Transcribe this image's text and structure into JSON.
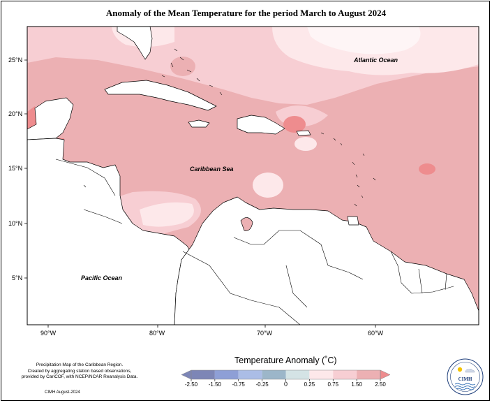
{
  "title": "Anomaly of the Mean Temperature for the period March to August 2024",
  "map": {
    "labels": {
      "atlantic": "Atlantic Ocean",
      "caribbean": "Caribbean Sea",
      "pacific": "Pacific Ocean"
    },
    "lat_ticks": [
      "25°N",
      "20°N",
      "15°N",
      "10°N",
      "5°N"
    ],
    "lon_ticks": [
      "90°W",
      "80°W",
      "70°W",
      "60°W"
    ],
    "colors": {
      "anom_0_0.25": "#fde8ea",
      "anom_0.25_0.75": "#f7ced3",
      "anom_0.75_1.50": "#ecb0b3",
      "anom_1.50_2.50": "#ee8c8e",
      "land": "#ffffff",
      "coast": "#000000"
    }
  },
  "legend": {
    "title": "Temperature Anomaly (˚C)",
    "ticks": [
      "-2.50",
      "-1.50",
      "-0.75",
      "-0.25",
      "0",
      "0.25",
      "0.75",
      "1.50",
      "2.50"
    ],
    "colors": [
      "#7d86b6",
      "#8e9fd6",
      "#abbde6",
      "#9cb6c9",
      "#d4e3e5",
      "#fde8ea",
      "#f7ced3",
      "#ecb0b3",
      "#ee8c8e"
    ]
  },
  "credits": {
    "line1": "Precipitation Map of the Caribbean Region.",
    "line2": "Created by aggregating station based observations,",
    "line3": "provided by CariCOF, with NCEP/NCAR Reanalysis Data.",
    "date": "CIMH August-2024"
  },
  "logo": {
    "text": "CIMH"
  }
}
